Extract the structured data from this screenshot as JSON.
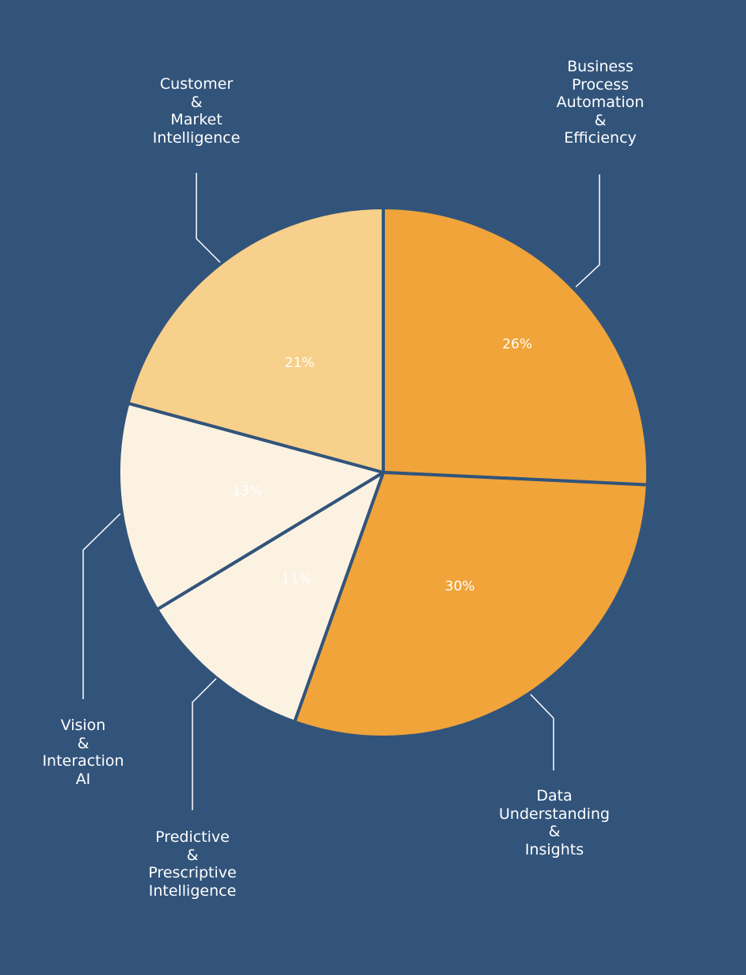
{
  "colors": {
    "background": "#32547b",
    "separator": "#32547b",
    "leader_line": "#ffffff",
    "label_text": "#ffffff"
  },
  "chart_data": {
    "type": "pie",
    "title": "",
    "slices": [
      {
        "label": "Business\nProcess\nAutomation\n&\nEfficiency",
        "value": 26,
        "value_label": "26%",
        "color": "#f0a43a",
        "value_label_color": "#ffffff"
      },
      {
        "label": "Data\nUnderstanding\n&\nInsights",
        "value": 30,
        "value_label": "30%",
        "color": "#f0a43a",
        "value_label_color": "#ffffff"
      },
      {
        "label": "Predictive\n&\nPrescriptive\nIntelligence",
        "value": 11,
        "value_label": "11%",
        "color": "#fcf2e2",
        "value_label_color": "#ffffff"
      },
      {
        "label": "Vision\n&\nInteraction\nAI",
        "value": 13,
        "value_label": "13%",
        "color": "#fcf2e2",
        "value_label_color": "#ffffff"
      },
      {
        "label": "Customer\n&\nMarket\nIntelligence",
        "value": 21,
        "value_label": "21%",
        "color": "#f7d08b",
        "value_label_color": "#ffffff"
      }
    ],
    "start": "12 o'clock",
    "direction": "clockwise",
    "legend": "none"
  }
}
